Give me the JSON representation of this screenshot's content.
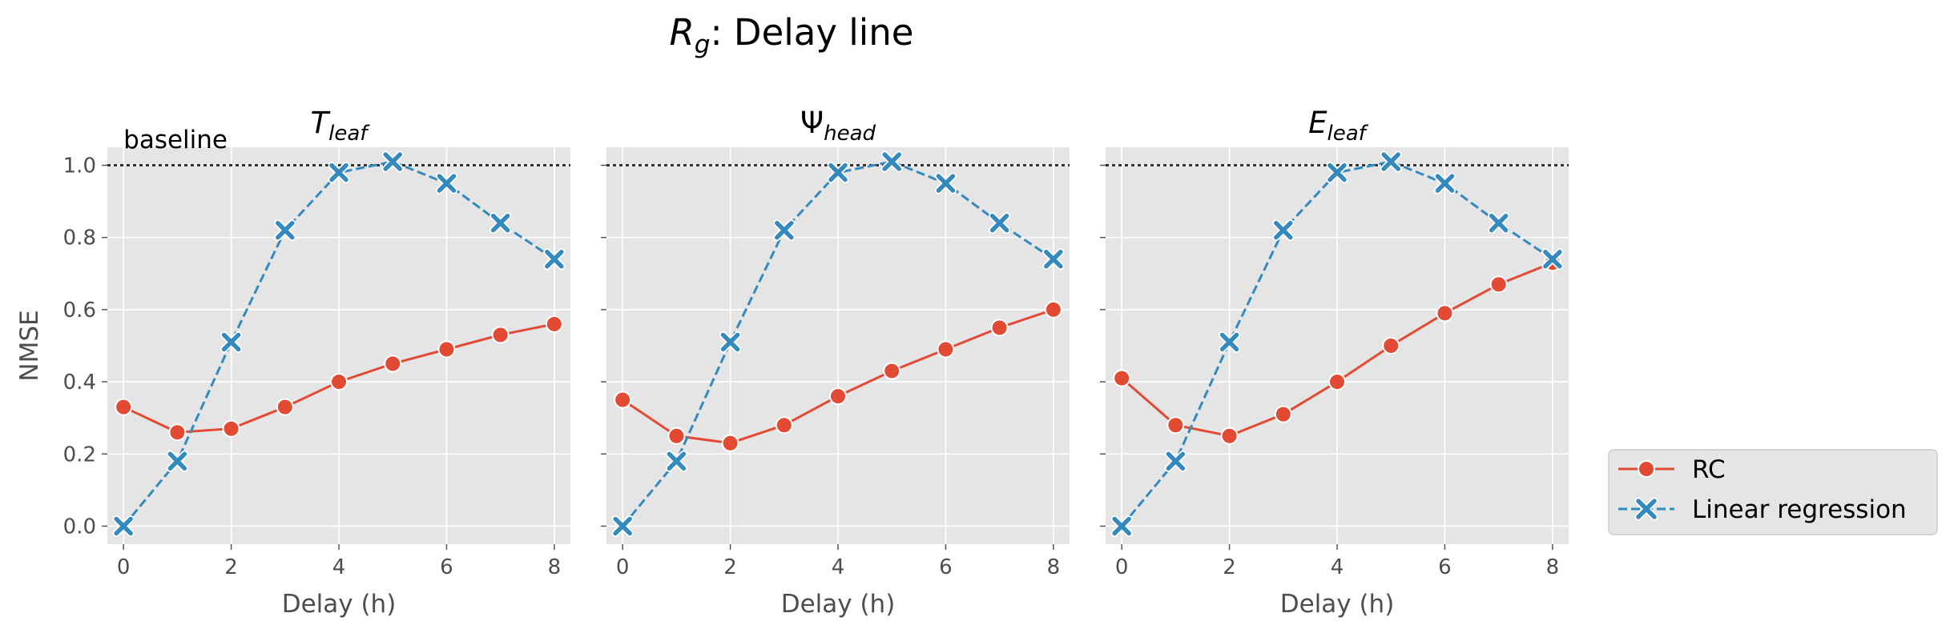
{
  "figure": {
    "suptitle_main": "R",
    "suptitle_sub": "g",
    "suptitle_rest": ": Delay line"
  },
  "chart_data": [
    {
      "type": "line",
      "title_main": "T",
      "title_sub": "leaf",
      "title_italic": true,
      "xlabel": "Delay (h)",
      "ylabel": "NMSE",
      "annotation": "baseline",
      "baseline": 1.0,
      "x": [
        0,
        1,
        2,
        3,
        4,
        5,
        6,
        7,
        8
      ],
      "xticks": [
        0,
        2,
        4,
        6,
        8
      ],
      "yticks": [
        0.0,
        0.2,
        0.4,
        0.6,
        0.8,
        1.0
      ],
      "xlim": [
        -0.3,
        8.3
      ],
      "ylim": [
        -0.05,
        1.05
      ],
      "grid": true,
      "series": [
        {
          "name": "RC",
          "values": [
            0.33,
            0.26,
            0.27,
            0.33,
            0.4,
            0.45,
            0.49,
            0.53,
            0.56
          ]
        },
        {
          "name": "Linear regression",
          "values": [
            0.0,
            0.18,
            0.51,
            0.82,
            0.98,
            1.01,
            0.95,
            0.84,
            0.74
          ]
        }
      ]
    },
    {
      "type": "line",
      "title_main": "Ψ",
      "title_sub": "head",
      "title_italic": false,
      "xlabel": "Delay (h)",
      "ylabel": "",
      "annotation": "",
      "baseline": 1.0,
      "x": [
        0,
        1,
        2,
        3,
        4,
        5,
        6,
        7,
        8
      ],
      "xticks": [
        0,
        2,
        4,
        6,
        8
      ],
      "yticks": [
        0.0,
        0.2,
        0.4,
        0.6,
        0.8,
        1.0
      ],
      "xlim": [
        -0.3,
        8.3
      ],
      "ylim": [
        -0.05,
        1.05
      ],
      "grid": true,
      "series": [
        {
          "name": "RC",
          "values": [
            0.35,
            0.25,
            0.23,
            0.28,
            0.36,
            0.43,
            0.49,
            0.55,
            0.6
          ]
        },
        {
          "name": "Linear regression",
          "values": [
            0.0,
            0.18,
            0.51,
            0.82,
            0.98,
            1.01,
            0.95,
            0.84,
            0.74
          ]
        }
      ]
    },
    {
      "type": "line",
      "title_main": "E",
      "title_sub": "leaf",
      "title_italic": true,
      "xlabel": "Delay (h)",
      "ylabel": "",
      "annotation": "",
      "baseline": 1.0,
      "x": [
        0,
        1,
        2,
        3,
        4,
        5,
        6,
        7,
        8
      ],
      "xticks": [
        0,
        2,
        4,
        6,
        8
      ],
      "yticks": [
        0.0,
        0.2,
        0.4,
        0.6,
        0.8,
        1.0
      ],
      "xlim": [
        -0.3,
        8.3
      ],
      "ylim": [
        -0.05,
        1.05
      ],
      "grid": true,
      "series": [
        {
          "name": "RC",
          "values": [
            0.41,
            0.28,
            0.25,
            0.31,
            0.4,
            0.5,
            0.59,
            0.67,
            0.73
          ]
        },
        {
          "name": "Linear regression",
          "values": [
            0.0,
            0.18,
            0.51,
            0.82,
            0.98,
            1.01,
            0.95,
            0.84,
            0.74
          ]
        }
      ]
    }
  ],
  "legend": {
    "placement": "right",
    "items": [
      {
        "label": "RC",
        "color": "#E24A33",
        "marker": "circle",
        "dash": "solid"
      },
      {
        "label": "Linear regression",
        "color": "#348ABD",
        "marker": "x",
        "dash": "dashed"
      }
    ]
  },
  "colors": {
    "panel_background": "#E5E5E5",
    "grid": "#FFFFFF",
    "baseline": "#333333",
    "rc": "#E24A33",
    "lr": "#348ABD"
  }
}
